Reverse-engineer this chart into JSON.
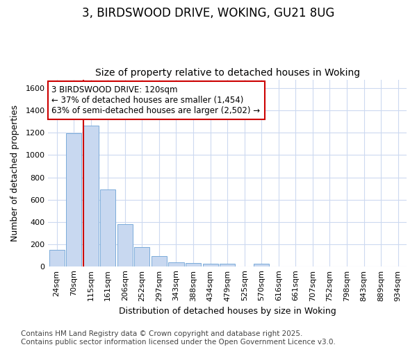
{
  "title": "3, BIRDSWOOD DRIVE, WOKING, GU21 8UG",
  "subtitle": "Size of property relative to detached houses in Woking",
  "xlabel": "Distribution of detached houses by size in Woking",
  "ylabel": "Number of detached properties",
  "categories": [
    "24sqm",
    "70sqm",
    "115sqm",
    "161sqm",
    "206sqm",
    "252sqm",
    "297sqm",
    "343sqm",
    "388sqm",
    "434sqm",
    "479sqm",
    "525sqm",
    "570sqm",
    "616sqm",
    "661sqm",
    "707sqm",
    "752sqm",
    "798sqm",
    "843sqm",
    "889sqm",
    "934sqm"
  ],
  "values": [
    148,
    1195,
    1265,
    690,
    378,
    175,
    93,
    35,
    27,
    20,
    20,
    0,
    20,
    0,
    0,
    0,
    0,
    0,
    0,
    0,
    0
  ],
  "bar_color": "#c8d8f0",
  "bar_edge_color": "#7aabda",
  "background_color": "#ffffff",
  "grid_color": "#ccd9f0",
  "vline_color": "#cc0000",
  "annotation_text": "3 BIRDSWOOD DRIVE: 120sqm\n← 37% of detached houses are smaller (1,454)\n63% of semi-detached houses are larger (2,502) →",
  "annotation_box_color": "#ffffff",
  "annotation_box_edge_color": "#cc0000",
  "ylim": [
    0,
    1680
  ],
  "yticks": [
    0,
    200,
    400,
    600,
    800,
    1000,
    1200,
    1400,
    1600
  ],
  "footer_text": "Contains HM Land Registry data © Crown copyright and database right 2025.\nContains public sector information licensed under the Open Government Licence v3.0.",
  "title_fontsize": 12,
  "subtitle_fontsize": 10,
  "xlabel_fontsize": 9,
  "ylabel_fontsize": 9,
  "tick_fontsize": 8,
  "annotation_fontsize": 8.5,
  "footer_fontsize": 7.5
}
